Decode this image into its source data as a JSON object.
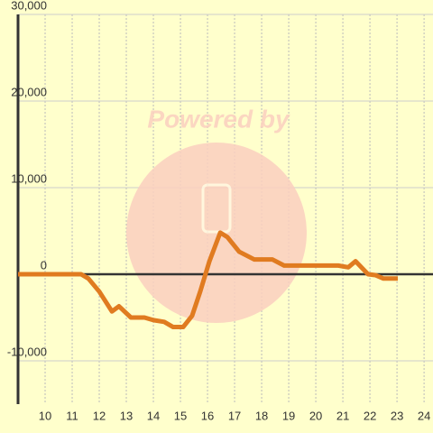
{
  "chart_data": {
    "type": "line",
    "watermark": "Powered by",
    "x": [
      9,
      11.33,
      11.6,
      12.0,
      12.47,
      12.73,
      13.17,
      13.67,
      14.0,
      14.4,
      14.73,
      15.1,
      15.43,
      15.73,
      16.07,
      16.47,
      16.73,
      17.17,
      17.73,
      18.4,
      18.83,
      19.33,
      20.83,
      21.2,
      21.47,
      21.93,
      22.2,
      22.5,
      23.03
    ],
    "series": [
      {
        "color": "#e07b20",
        "values": [
          0,
          0,
          -500,
          -2000,
          -4300,
          -3700,
          -5000,
          -5000,
          -5300,
          -5500,
          -6100,
          -6100,
          -4800,
          -2000,
          1500,
          4800,
          4300,
          2600,
          1700,
          1700,
          1000,
          1000,
          1000,
          800,
          1500,
          0,
          -100,
          -500,
          -500
        ]
      }
    ],
    "xlim": [
      9,
      24.33
    ],
    "xticks": [
      10,
      11,
      12,
      13,
      14,
      15,
      16,
      17,
      18,
      19,
      20,
      21,
      22,
      23,
      24
    ],
    "ylim": [
      -15000,
      30000
    ],
    "yticks": [
      {
        "value": -10000,
        "label": "-10,000"
      },
      0,
      {
        "value": 10000,
        "label": "10,000"
      },
      {
        "value": 20000,
        "label": "20,000"
      },
      {
        "value": 30000,
        "label": "30,000"
      }
    ],
    "grid": true
  }
}
